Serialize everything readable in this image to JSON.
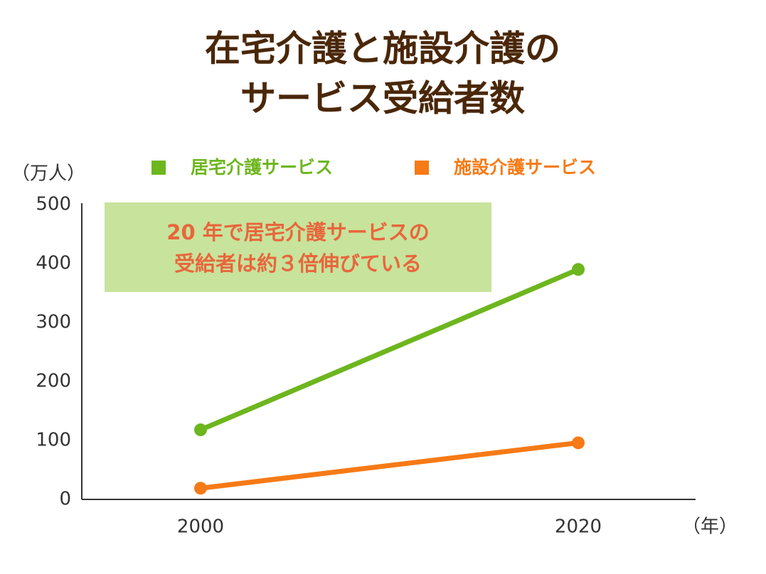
{
  "chart_data": {
    "type": "line",
    "title": [
      "在宅介護と施設介護の",
      "サービス受給者数"
    ],
    "y_label": "（万人）",
    "x_label": "（年）",
    "annotation": [
      "20 年で居宅介護サービスの",
      "受給者は約３倍伸びている"
    ],
    "categories": [
      "2000",
      "2020"
    ],
    "series": [
      {
        "name": "居宅介護サービス",
        "color": "#6db61e",
        "values": [
          118,
          390
        ]
      },
      {
        "name": "施設介護サービス",
        "color": "#f67a16",
        "values": [
          19,
          96
        ]
      }
    ],
    "ylim": [
      0,
      500
    ],
    "yticks": [
      0,
      100,
      200,
      300,
      400,
      500
    ],
    "grid": false
  }
}
